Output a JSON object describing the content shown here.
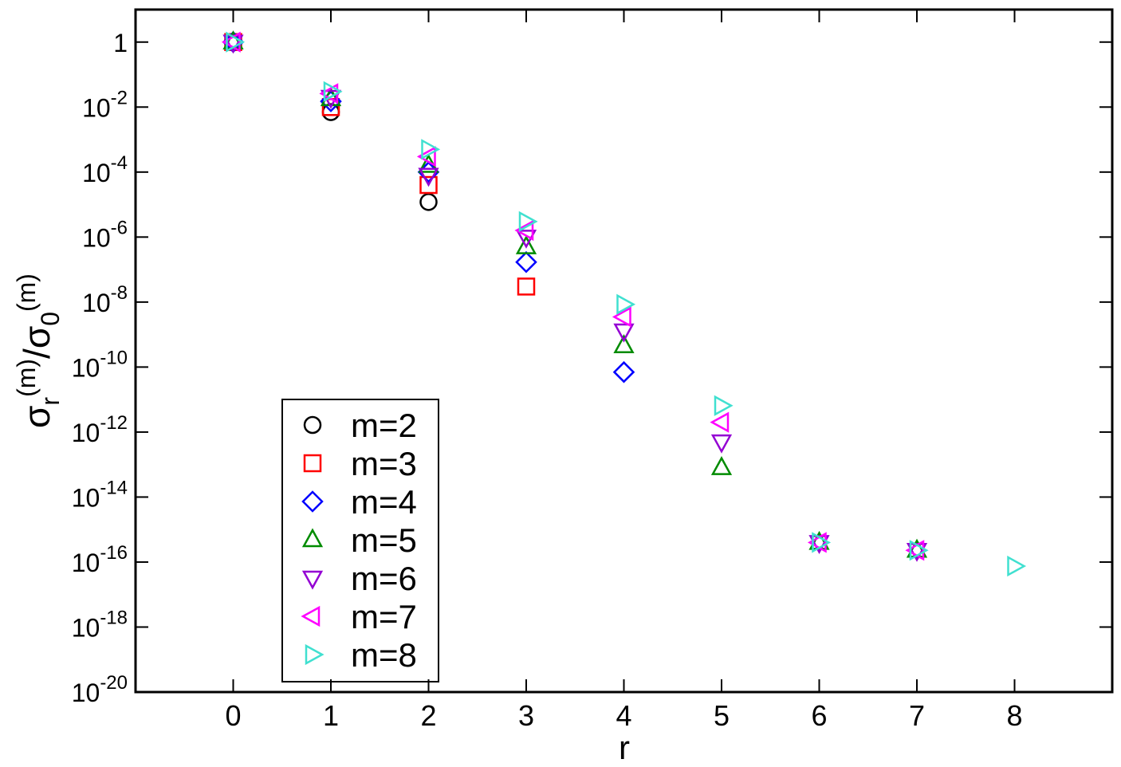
{
  "chart_data": {
    "type": "scatter",
    "xlabel": "r",
    "ylabel": [
      "σ",
      "r",
      "(m)",
      "/σ",
      "0",
      "(m)"
    ],
    "x": [
      0,
      1,
      2,
      3,
      4,
      5,
      6,
      7,
      8
    ],
    "xlim": [
      -1,
      9
    ],
    "xticks": [
      0,
      1,
      2,
      3,
      4,
      5,
      6,
      7,
      8
    ],
    "ylim": [
      1e-20,
      10
    ],
    "log_y": true,
    "yticks": [
      1,
      {
        "value": 0.01,
        "label": "10",
        "exponent": "-2"
      },
      {
        "value": 0.0001,
        "label": "10",
        "exponent": "-4"
      },
      {
        "value": 1e-06,
        "label": "10",
        "exponent": "-6"
      },
      {
        "value": 1e-08,
        "label": "10",
        "exponent": "-8"
      },
      {
        "value": 1e-10,
        "label": "10",
        "exponent": "-10"
      },
      {
        "value": 1e-12,
        "label": "10",
        "exponent": "-12"
      },
      {
        "value": 1e-14,
        "label": "10",
        "exponent": "-14"
      },
      {
        "value": 1e-16,
        "label": "10",
        "exponent": "-16"
      },
      {
        "value": 1e-18,
        "label": "10",
        "exponent": "-18"
      },
      {
        "value": 1e-20,
        "label": "10",
        "exponent": "-20"
      }
    ],
    "legend": "lower-left",
    "series": [
      {
        "name": "m=2",
        "color": "#000000",
        "marker": "circle",
        "values": [
          1,
          0.007,
          1.2e-05,
          null,
          null,
          null,
          null,
          null,
          null
        ]
      },
      {
        "name": "m=3",
        "color": "#ff0000",
        "marker": "square",
        "values": [
          1,
          0.01,
          4e-05,
          3e-08,
          null,
          null,
          null,
          null,
          null
        ]
      },
      {
        "name": "m=4",
        "color": "#0000ff",
        "marker": "diamond",
        "values": [
          1,
          0.015,
          0.0001,
          1.7e-07,
          7e-11,
          null,
          null,
          null,
          null
        ]
      },
      {
        "name": "m=5",
        "color": "#008b00",
        "marker": "triangle-up",
        "values": [
          1,
          0.018,
          0.00016,
          5e-07,
          4.5e-10,
          8e-14,
          4e-16,
          2.3e-16,
          null
        ]
      },
      {
        "name": "m=6",
        "color": "#9400d3",
        "marker": "triangle-down",
        "values": [
          1,
          0.02,
          8e-05,
          1e-06,
          1.3e-09,
          5e-13,
          4e-16,
          2.3e-16,
          null
        ]
      },
      {
        "name": "m=7",
        "color": "#ff00ff",
        "marker": "triangle-left",
        "values": [
          1,
          0.026,
          0.0003,
          1.6e-06,
          3.5e-09,
          2e-12,
          4e-16,
          2.3e-16,
          null
        ]
      },
      {
        "name": "m=8",
        "color": "#40e0d0",
        "marker": "triangle-right",
        "values": [
          1,
          0.03,
          0.0005,
          3e-06,
          8.5e-09,
          6.5e-12,
          4e-16,
          2.3e-16,
          7.5e-17
        ]
      }
    ]
  }
}
